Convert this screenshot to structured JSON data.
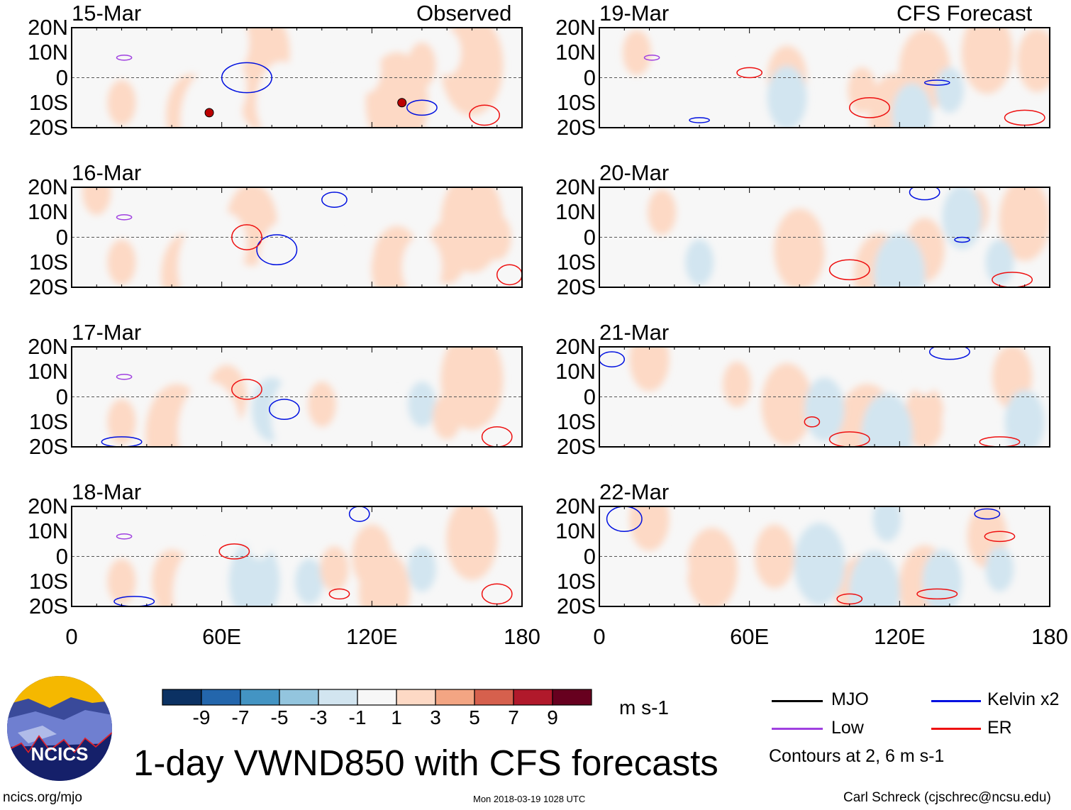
{
  "chart_data": {
    "type": "heatmap",
    "title": "1-day VWND850 with CFS forecasts",
    "units": "m s-1",
    "colorbar": {
      "ticks": [
        "-9",
        "-7",
        "-5",
        "-3",
        "-1",
        "1",
        "3",
        "5",
        "7",
        "9"
      ],
      "colors": [
        "#0b3163",
        "#2366ac",
        "#4394c3",
        "#93c5de",
        "#d2e5f0",
        "#f7f7f7",
        "#fdd9c5",
        "#f3a583",
        "#d6604d",
        "#b1192b",
        "#67001f"
      ]
    },
    "xticks": [
      "0",
      "60E",
      "120E",
      "180"
    ],
    "yticks": [
      "20N",
      "10N",
      "0",
      "10S",
      "20S"
    ],
    "xlim": [
      0,
      180
    ],
    "ylim": [
      -20,
      20
    ],
    "column_labels": {
      "left": "Observed",
      "right": "CFS Forecast"
    },
    "panels": [
      {
        "date": "15-Mar",
        "col": 0,
        "row": 0,
        "anoms": [
          [
            77,
            10,
            7
          ],
          [
            160,
            5,
            9
          ],
          [
            130,
            -10,
            9
          ],
          [
            48,
            -15,
            8
          ],
          [
            75,
            -8,
            5
          ],
          [
            56,
            -17,
            -9
          ],
          [
            84,
            -10,
            -7
          ],
          [
            62,
            -4,
            -5
          ],
          [
            63,
            14,
            -5
          ],
          [
            104,
            -10,
            -5
          ],
          [
            150,
            10,
            -3
          ],
          [
            118,
            3,
            -3
          ],
          [
            20,
            -10,
            3
          ],
          [
            140,
            5,
            3
          ]
        ],
        "contours": [
          [
            "kelvin",
            70,
            0,
            10,
            6
          ],
          [
            "kelvin",
            140,
            -12,
            6,
            3
          ],
          [
            "er",
            165,
            -15,
            6,
            4
          ],
          [
            "low",
            21,
            8,
            3,
            1
          ]
        ],
        "markers": [
          [
            "E",
            55,
            -14
          ],
          [
            "M",
            132,
            -10
          ]
        ]
      },
      {
        "date": "16-Mar",
        "col": 0,
        "row": 0,
        "anoms": [
          [
            72,
            5,
            7
          ],
          [
            160,
            6,
            9
          ],
          [
            130,
            -12,
            8
          ],
          [
            150,
            -6,
            6
          ],
          [
            46,
            -15,
            7
          ],
          [
            55,
            -12,
            -9
          ],
          [
            85,
            -10,
            -7
          ],
          [
            62,
            -3,
            -5
          ],
          [
            115,
            -5,
            -3
          ],
          [
            140,
            -12,
            -5
          ],
          [
            20,
            -10,
            3
          ],
          [
            170,
            0,
            3
          ],
          [
            10,
            18,
            4
          ]
        ],
        "contours": [
          [
            "kelvin",
            82,
            -5,
            8,
            6
          ],
          [
            "kelvin",
            105,
            15,
            5,
            3
          ],
          [
            "er",
            70,
            0,
            6,
            5
          ],
          [
            "er",
            175,
            -15,
            5,
            4
          ],
          [
            "low",
            21,
            8,
            3,
            1
          ]
        ],
        "markers": []
      },
      {
        "date": "17-Mar",
        "col": 0,
        "row": 0,
        "anoms": [
          [
            62,
            0,
            6
          ],
          [
            160,
            7,
            9
          ],
          [
            128,
            -14,
            6
          ],
          [
            42,
            -15,
            9
          ],
          [
            55,
            -14,
            -9
          ],
          [
            80,
            -5,
            -6
          ],
          [
            90,
            -8,
            -7
          ],
          [
            130,
            -14,
            -7
          ],
          [
            140,
            -3,
            -4
          ],
          [
            100,
            -3,
            4
          ],
          [
            20,
            -10,
            3
          ],
          [
            150,
            -8,
            4
          ]
        ],
        "contours": [
          [
            "kelvin",
            85,
            -5,
            6,
            4
          ],
          [
            "kelvin",
            20,
            -18,
            8,
            2
          ],
          [
            "er",
            70,
            3,
            6,
            4
          ],
          [
            "er",
            170,
            -16,
            6,
            4
          ],
          [
            "low",
            21,
            8,
            3,
            1
          ]
        ],
        "markers": []
      },
      {
        "date": "18-Mar",
        "col": 0,
        "row": 0,
        "anoms": [
          [
            160,
            7,
            7
          ],
          [
            125,
            -14,
            8
          ],
          [
            44,
            -15,
            8
          ],
          [
            40,
            -10,
            5
          ],
          [
            53,
            -15,
            -9
          ],
          [
            73,
            -10,
            -8
          ],
          [
            95,
            -10,
            -4
          ],
          [
            140,
            -5,
            -4
          ],
          [
            75,
            8,
            -3
          ],
          [
            120,
            0,
            5
          ],
          [
            20,
            -10,
            3
          ],
          [
            105,
            -5,
            3
          ]
        ],
        "contours": [
          [
            "er",
            65,
            2,
            6,
            3
          ],
          [
            "er",
            170,
            -15,
            6,
            4
          ],
          [
            "er",
            107,
            -15,
            4,
            2
          ],
          [
            "kelvin",
            25,
            -18,
            8,
            2
          ],
          [
            "kelvin",
            115,
            17,
            4,
            3
          ],
          [
            "low",
            21,
            8,
            3,
            1
          ]
        ],
        "markers": []
      },
      {
        "date": "19-Mar",
        "col": 1,
        "row": 0,
        "anoms": [
          [
            155,
            10,
            7
          ],
          [
            175,
            7,
            6
          ],
          [
            130,
            3,
            8
          ],
          [
            118,
            -15,
            8
          ],
          [
            75,
            0,
            5
          ],
          [
            105,
            -5,
            4
          ],
          [
            55,
            -15,
            -9
          ],
          [
            75,
            -8,
            -6
          ],
          [
            125,
            -15,
            -6
          ],
          [
            90,
            10,
            -3
          ],
          [
            140,
            -5,
            -4
          ],
          [
            30,
            -5,
            -3
          ],
          [
            15,
            10,
            4
          ]
        ],
        "contours": [
          [
            "er",
            60,
            2,
            5,
            2
          ],
          [
            "er",
            108,
            -12,
            8,
            4
          ],
          [
            "er",
            170,
            -16,
            8,
            3
          ],
          [
            "kelvin",
            135,
            -2,
            5,
            1
          ],
          [
            "kelvin",
            40,
            -17,
            4,
            1
          ],
          [
            "low",
            21,
            8,
            3,
            1
          ]
        ],
        "markers": []
      },
      {
        "date": "20-Mar",
        "col": 1,
        "row": 0,
        "anoms": [
          [
            80,
            -5,
            8
          ],
          [
            170,
            7,
            7
          ],
          [
            112,
            -15,
            8
          ],
          [
            130,
            -5,
            5
          ],
          [
            150,
            10,
            4
          ],
          [
            120,
            -15,
            -8
          ],
          [
            145,
            8,
            -6
          ],
          [
            160,
            -10,
            -4
          ],
          [
            40,
            -10,
            -4
          ],
          [
            95,
            0,
            -3
          ],
          [
            25,
            10,
            3
          ]
        ],
        "contours": [
          [
            "er",
            100,
            -13,
            8,
            4
          ],
          [
            "er",
            165,
            -17,
            8,
            3
          ],
          [
            "kelvin",
            130,
            18,
            6,
            3
          ],
          [
            "kelvin",
            145,
            -1,
            3,
            1
          ]
        ],
        "markers": []
      },
      {
        "date": "21-Mar",
        "col": 1,
        "row": 0,
        "anoms": [
          [
            75,
            -3,
            8
          ],
          [
            107,
            -15,
            9
          ],
          [
            130,
            -8,
            6
          ],
          [
            165,
            8,
            6
          ],
          [
            20,
            15,
            5
          ],
          [
            115,
            -15,
            -8
          ],
          [
            90,
            -5,
            -6
          ],
          [
            145,
            -10,
            -5
          ],
          [
            40,
            -10,
            -5
          ],
          [
            170,
            -10,
            -6
          ],
          [
            130,
            10,
            -3
          ],
          [
            55,
            5,
            4
          ]
        ],
        "contours": [
          [
            "er",
            100,
            -17,
            8,
            3
          ],
          [
            "er",
            160,
            -18,
            8,
            2
          ],
          [
            "er",
            85,
            -10,
            3,
            2
          ],
          [
            "kelvin",
            140,
            18,
            8,
            3
          ],
          [
            "kelvin",
            5,
            15,
            5,
            3
          ]
        ],
        "markers": []
      },
      {
        "date": "22-Mar",
        "col": 1,
        "row": 0,
        "anoms": [
          [
            105,
            -16,
            8
          ],
          [
            130,
            -12,
            7
          ],
          [
            45,
            -5,
            7
          ],
          [
            70,
            0,
            5
          ],
          [
            20,
            15,
            6
          ],
          [
            155,
            8,
            5
          ],
          [
            88,
            -3,
            -8
          ],
          [
            110,
            -14,
            -8
          ],
          [
            170,
            -12,
            -7
          ],
          [
            137,
            -10,
            -6
          ],
          [
            115,
            15,
            -4
          ],
          [
            160,
            -5,
            -4
          ],
          [
            30,
            -5,
            -3
          ]
        ],
        "contours": [
          [
            "er",
            100,
            -17,
            5,
            2
          ],
          [
            "er",
            135,
            -15,
            8,
            2
          ],
          [
            "er",
            160,
            8,
            6,
            2
          ],
          [
            "kelvin",
            10,
            15,
            7,
            5
          ],
          [
            "kelvin",
            155,
            17,
            5,
            2
          ]
        ],
        "markers": []
      }
    ]
  },
  "legend": {
    "mjo": "MJO",
    "kelvin": "Kelvin x2",
    "low": "Low",
    "er": "ER",
    "contours_note": "Contours at 2, 6 m s-1",
    "colors": {
      "mjo": "#000000",
      "kelvin": "#0010e0",
      "low": "#a040e0",
      "er": "#ee1010"
    }
  },
  "logo": "NCICS",
  "footer": {
    "url": "ncics.org/mjo",
    "timestamp": "Mon 2018-03-19 1028 UTC",
    "author": "Carl Schreck (cjschrec@ncsu.edu)"
  }
}
